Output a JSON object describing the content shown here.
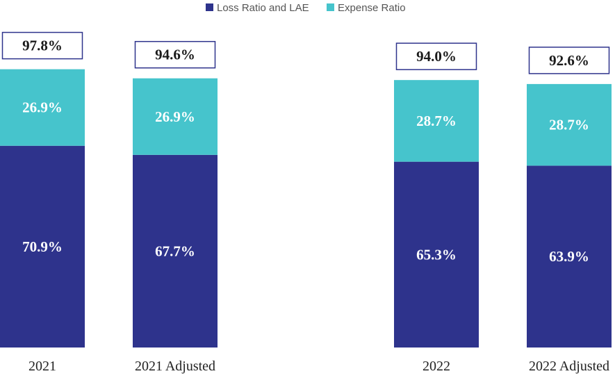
{
  "chart_data": {
    "type": "bar",
    "stacked": true,
    "categories": [
      "2021",
      "2021 Adjusted",
      "2022",
      "2022 Adjusted"
    ],
    "series": [
      {
        "name": "Loss Ratio and LAE",
        "values": [
          70.9,
          67.7,
          65.3,
          63.9
        ],
        "labels": [
          "70.9%",
          "67.7%",
          "65.3%",
          "63.9%"
        ],
        "color": "#2e338c"
      },
      {
        "name": "Expense Ratio",
        "values": [
          26.9,
          26.9,
          28.7,
          28.7
        ],
        "labels": [
          "26.9%",
          "26.9%",
          "28.7%",
          "28.7%"
        ],
        "color": "#46c4cc"
      }
    ],
    "totals": [
      97.8,
      94.6,
      94.0,
      92.6
    ],
    "total_labels": [
      "97.8%",
      "94.6%",
      "94.0%",
      "92.6%"
    ],
    "legend_position": "top-center",
    "title": "",
    "xlabel": "",
    "ylabel": "",
    "ylim": [
      0,
      100
    ]
  }
}
